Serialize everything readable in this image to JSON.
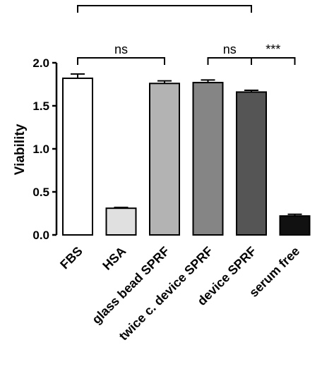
{
  "chart_data": {
    "type": "bar",
    "title": "",
    "xlabel": "",
    "ylabel": "Viability",
    "ylim": [
      0,
      2.0
    ],
    "yticks": [
      0.0,
      0.5,
      1.0,
      1.5,
      2.0
    ],
    "ytick_labels": [
      "0.0",
      "0.5",
      "1.0",
      "1.5",
      "2.0"
    ],
    "grid": false,
    "legend": "none",
    "categories": [
      "FBS",
      "HSA",
      "glass bead SPRF",
      "twice c. device SPRF",
      "device SPRF",
      "serum free"
    ],
    "values": [
      1.82,
      0.31,
      1.76,
      1.77,
      1.66,
      0.22
    ],
    "errors": [
      0.05,
      0.01,
      0.03,
      0.03,
      0.02,
      0.02
    ],
    "colors": [
      "#ffffff",
      "#e0e0e0",
      "#b3b3b3",
      "#858585",
      "#555555",
      "#111111"
    ],
    "significance": [
      {
        "from": 0,
        "to": 4,
        "label": "*"
      },
      {
        "from": 0,
        "to": 2,
        "label": "ns"
      },
      {
        "from": 3,
        "to": 4,
        "label": "ns"
      },
      {
        "from": 4,
        "to": 5,
        "label": "***"
      }
    ]
  }
}
